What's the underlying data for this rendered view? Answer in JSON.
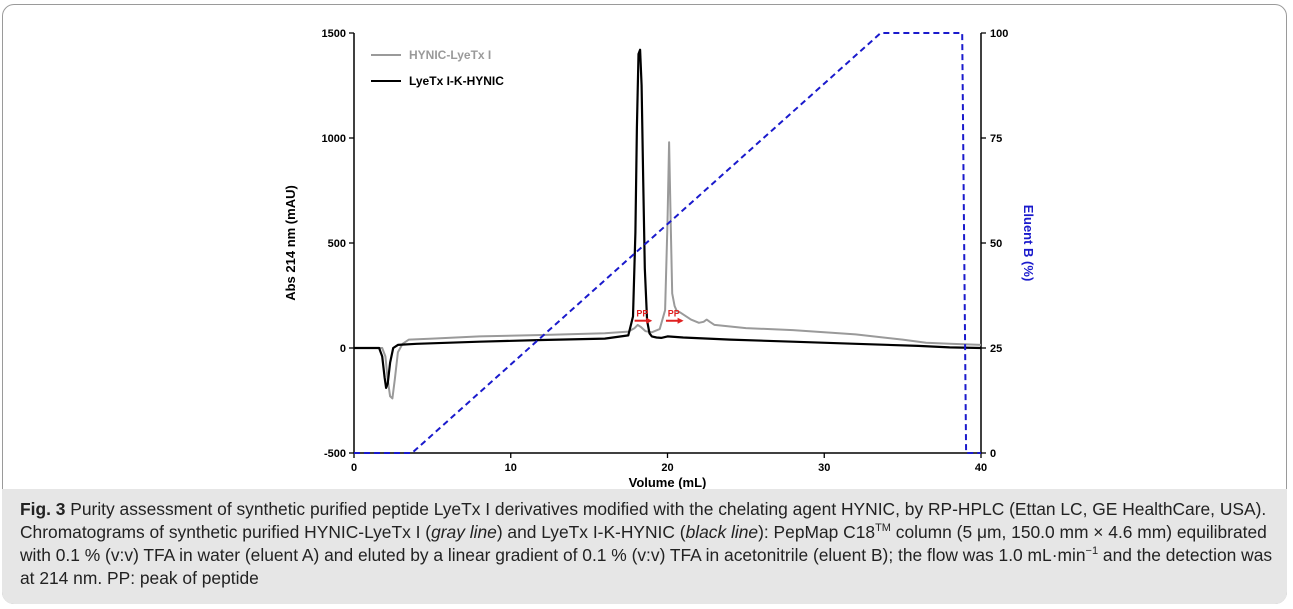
{
  "figure": {
    "caption": {
      "label": "Fig. 3",
      "p1": " Purity assessment of synthetic purified peptide LyeTx I derivatives modified with the chelating agent HYNIC, by RP-HPLC (Ettan LC, GE HealthCare, USA). Chromatograms of synthetic purified HYNIC-LyeTx I (",
      "gray_term": "gray line",
      "p2": ") and LyeTx I-K-HYNIC (",
      "black_term": "black line",
      "p3": "): PepMap C18",
      "tm": "TM",
      "p4": " column (5 μm, 150.0 mm × 4.6 mm) equilibrated with 0.1 % (v:v) TFA in water (eluent A) and eluted by a linear gradient of 0.1 % (v:v) TFA in acetonitrile (eluent B); the flow was 1.0 mL·min",
      "exp": "−1",
      "p5": " and the detection was at 214 nm. PP: peak of peptide"
    }
  },
  "chart_data": {
    "type": "line",
    "xlabel": "Volume (mL)",
    "ylabel": "Abs 214 nm (mAU)",
    "y2label": "Eluent B (%)",
    "xlim": [
      0,
      40
    ],
    "ylim": [
      -500,
      1500
    ],
    "y2lim": [
      0,
      100
    ],
    "x_ticks": [
      "0",
      "10",
      "20",
      "30",
      "40"
    ],
    "y_ticks": [
      "-500",
      "0",
      "500",
      "1000",
      "1500"
    ],
    "y2_ticks": [
      "0",
      "25",
      "50",
      "75",
      "100"
    ],
    "legend_position": "top-left",
    "annotations": [
      {
        "text": "PP",
        "x_from": 17.9,
        "x_to": 18.9,
        "y": 130
      },
      {
        "text": "PP",
        "x_from": 19.9,
        "x_to": 20.9,
        "y": 130
      }
    ],
    "colors": {
      "gray": "#9a9a9a",
      "black": "#000000",
      "blue": "#1a1acc",
      "pp": "#e02020"
    },
    "series": [
      {
        "name": "HYNIC-LyeTx I",
        "axis": "left",
        "style": "gray",
        "x": [
          0,
          1.8,
          2.0,
          2.15,
          2.3,
          2.45,
          2.6,
          2.8,
          3.1,
          3.5,
          5,
          8,
          12,
          16,
          17.5,
          17.9,
          18.1,
          18.3,
          18.6,
          19.0,
          19.5,
          19.85,
          20.0,
          20.1,
          20.2,
          20.3,
          20.45,
          20.6,
          20.8,
          21.0,
          21.5,
          22.0,
          22.3,
          22.5,
          22.7,
          23,
          25,
          28,
          32,
          35,
          36.5,
          38,
          40
        ],
        "y": [
          0,
          0,
          -40,
          -150,
          -230,
          -240,
          -150,
          -20,
          20,
          40,
          45,
          55,
          62,
          70,
          78,
          95,
          110,
          100,
          80,
          75,
          90,
          180,
          600,
          980,
          620,
          260,
          200,
          175,
          170,
          160,
          135,
          120,
          125,
          135,
          125,
          110,
          95,
          85,
          65,
          40,
          25,
          20,
          15
        ]
      },
      {
        "name": "LyeTx I-K-HYNIC",
        "axis": "left",
        "style": "black",
        "x": [
          0,
          1.6,
          1.8,
          1.95,
          2.05,
          2.15,
          2.3,
          2.5,
          2.8,
          4,
          8,
          12,
          16,
          17.5,
          17.8,
          17.95,
          18.05,
          18.15,
          18.25,
          18.35,
          18.45,
          18.55,
          18.7,
          18.85,
          19.0,
          19.3,
          19.6,
          20,
          21,
          24,
          28,
          32,
          36,
          38,
          40
        ],
        "y": [
          0,
          0,
          -40,
          -140,
          -190,
          -170,
          -70,
          0,
          15,
          20,
          30,
          38,
          45,
          60,
          150,
          550,
          1050,
          1400,
          1420,
          1250,
          800,
          380,
          130,
          70,
          55,
          50,
          48,
          55,
          50,
          40,
          30,
          20,
          10,
          3,
          0
        ]
      },
      {
        "name": "Eluent B",
        "axis": "right",
        "style": "blue-dashed",
        "x": [
          0,
          3.7,
          33.6,
          38.8,
          39.05,
          39.2,
          39.3,
          40
        ],
        "y": [
          0,
          0,
          100,
          100,
          0,
          0,
          0,
          0
        ]
      }
    ]
  }
}
